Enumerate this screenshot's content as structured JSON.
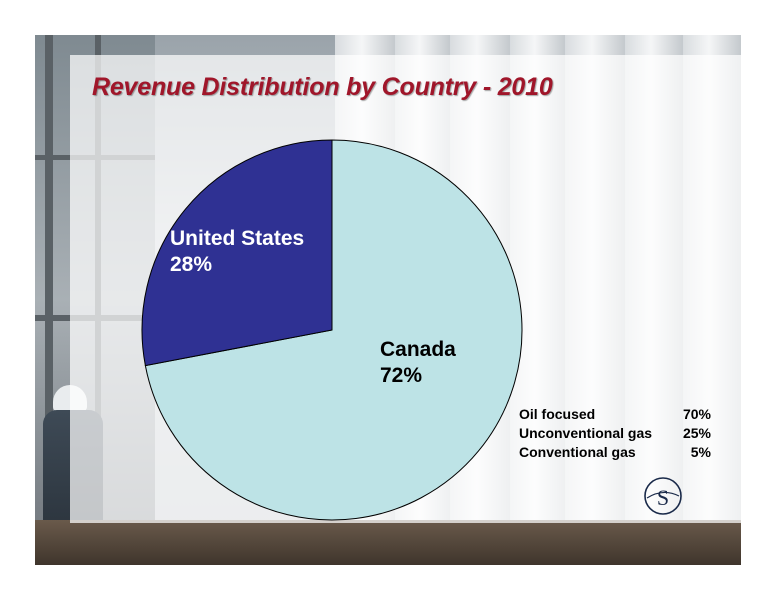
{
  "title": "Revenue Distribution by Country - 2010",
  "chart_data": {
    "type": "pie",
    "title": "Revenue Distribution by Country - 2010",
    "slices": [
      {
        "label": "Canada",
        "value": 72,
        "value_label": "72%",
        "color": "#bde3e6"
      },
      {
        "label": "United States",
        "value": 28,
        "value_label": "28%",
        "color": "#2f3193"
      }
    ]
  },
  "breakdown": [
    {
      "label": "Oil focused",
      "value": "70%"
    },
    {
      "label": "Unconventional gas",
      "value": "25%"
    },
    {
      "label": "Conventional gas",
      "value": "5%"
    }
  ],
  "logo": {
    "letter": "S"
  },
  "colors": {
    "title": "#a0162a",
    "slice_outline": "#000000"
  }
}
